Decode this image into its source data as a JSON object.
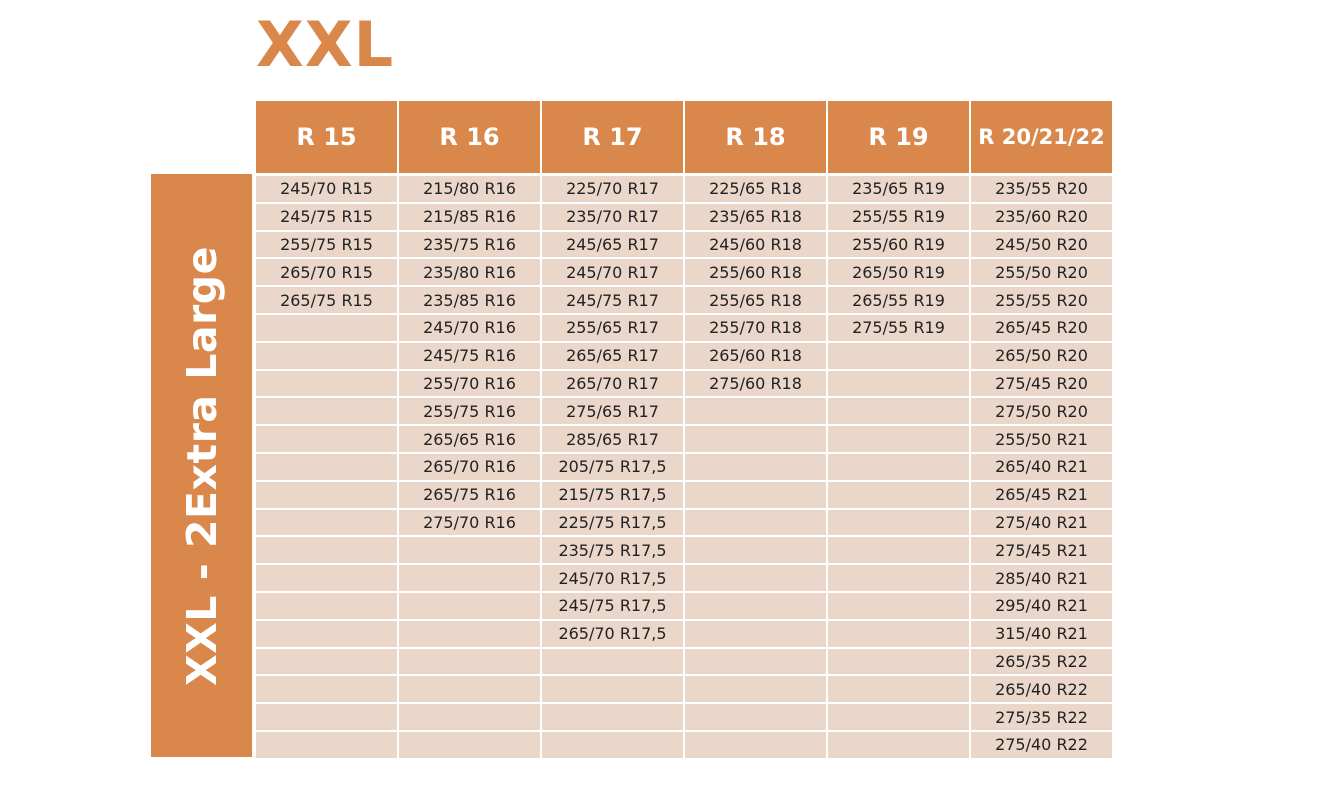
{
  "title": "XXL",
  "side_label": "XXL - 2Extra Large",
  "colors": {
    "accent": "#d9874b",
    "cell_background": "#ead7ca",
    "cell_text": "#222222"
  },
  "table": {
    "headers": [
      "R 15",
      "R 16",
      "R 17",
      "R 18",
      "R 19",
      "R 20/21/22"
    ],
    "rows": [
      [
        "245/70 R15",
        "215/80 R16",
        "225/70 R17",
        "225/65 R18",
        "235/65 R19",
        "235/55 R20"
      ],
      [
        "245/75 R15",
        "215/85 R16",
        "235/70 R17",
        "235/65 R18",
        "255/55 R19",
        "235/60 R20"
      ],
      [
        "255/75 R15",
        "235/75 R16",
        "245/65 R17",
        "245/60 R18",
        "255/60 R19",
        "245/50 R20"
      ],
      [
        "265/70 R15",
        "235/80 R16",
        "245/70 R17",
        "255/60 R18",
        "265/50 R19",
        "255/50 R20"
      ],
      [
        "265/75 R15",
        "235/85 R16",
        "245/75 R17",
        "255/65 R18",
        "265/55 R19",
        "255/55 R20"
      ],
      [
        "",
        "245/70 R16",
        "255/65 R17",
        "255/70 R18",
        "275/55 R19",
        "265/45 R20"
      ],
      [
        "",
        "245/75 R16",
        "265/65 R17",
        "265/60 R18",
        "",
        "265/50 R20"
      ],
      [
        "",
        "255/70 R16",
        "265/70 R17",
        "275/60 R18",
        "",
        "275/45 R20"
      ],
      [
        "",
        "255/75 R16",
        "275/65 R17",
        "",
        "",
        "275/50 R20"
      ],
      [
        "",
        "265/65 R16",
        "285/65 R17",
        "",
        "",
        "255/50 R21"
      ],
      [
        "",
        "265/70 R16",
        "205/75 R17,5",
        "",
        "",
        "265/40 R21"
      ],
      [
        "",
        "265/75 R16",
        "215/75 R17,5",
        "",
        "",
        "265/45 R21"
      ],
      [
        "",
        "275/70 R16",
        "225/75 R17,5",
        "",
        "",
        "275/40 R21"
      ],
      [
        "",
        "",
        "235/75 R17,5",
        "",
        "",
        "275/45 R21"
      ],
      [
        "",
        "",
        "245/70 R17,5",
        "",
        "",
        "285/40 R21"
      ],
      [
        "",
        "",
        "245/75 R17,5",
        "",
        "",
        "295/40 R21"
      ],
      [
        "",
        "",
        "265/70 R17,5",
        "",
        "",
        "315/40 R21"
      ],
      [
        "",
        "",
        "",
        "",
        "",
        "265/35 R22"
      ],
      [
        "",
        "",
        "",
        "",
        "",
        "265/40 R22"
      ],
      [
        "",
        "",
        "",
        "",
        "",
        "275/35 R22"
      ],
      [
        "",
        "",
        "",
        "",
        "",
        "275/40 R22"
      ]
    ]
  }
}
